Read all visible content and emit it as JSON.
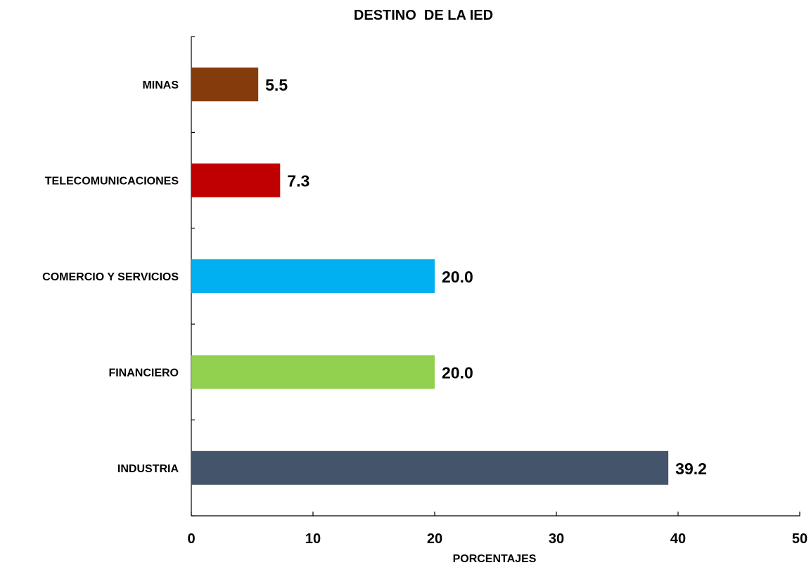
{
  "chart_data": {
    "type": "bar",
    "orientation": "horizontal",
    "title": "DESTINO  DE LA IED",
    "xlabel": "PORCENTAJES",
    "ylabel": "",
    "categories": [
      "MINAS",
      "TELECOMUNICACIONES",
      "COMERCIO Y SERVICIOS",
      "FINANCIERO",
      "INDUSTRIA"
    ],
    "values": [
      5.5,
      7.3,
      20.0,
      20.0,
      39.2
    ],
    "data_labels": [
      "5.5",
      "7.3",
      "20.0",
      "20.0",
      "39.2"
    ],
    "colors": [
      "#843C0C",
      "#C00000",
      "#00B0F0",
      "#92D050",
      "#44546A"
    ],
    "xlim": [
      0,
      50
    ],
    "x_ticks": [
      "0",
      "10",
      "20",
      "30",
      "40",
      "50"
    ],
    "grid": false,
    "legend": "none"
  }
}
